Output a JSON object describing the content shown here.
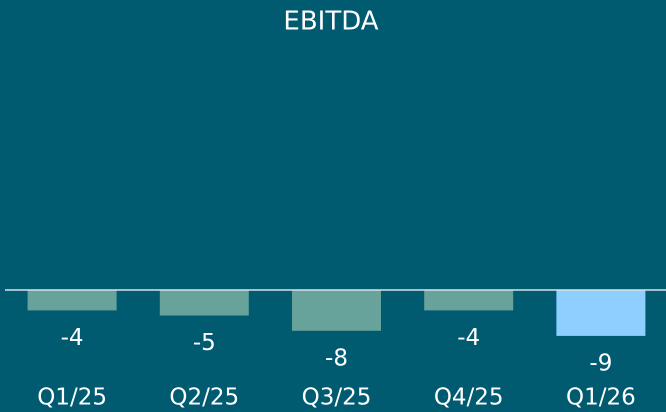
{
  "chart_data": {
    "type": "bar",
    "title": "EBITDA",
    "categories": [
      "Q1/25",
      "Q2/25",
      "Q3/25",
      "Q4/25",
      "Q1/26"
    ],
    "values": [
      -4,
      -5,
      -8,
      -4,
      -9
    ],
    "colors": [
      "#68a39b",
      "#68a39b",
      "#68a39b",
      "#68a39b",
      "#8ecfff"
    ],
    "ylim": [
      -10,
      47
    ]
  }
}
